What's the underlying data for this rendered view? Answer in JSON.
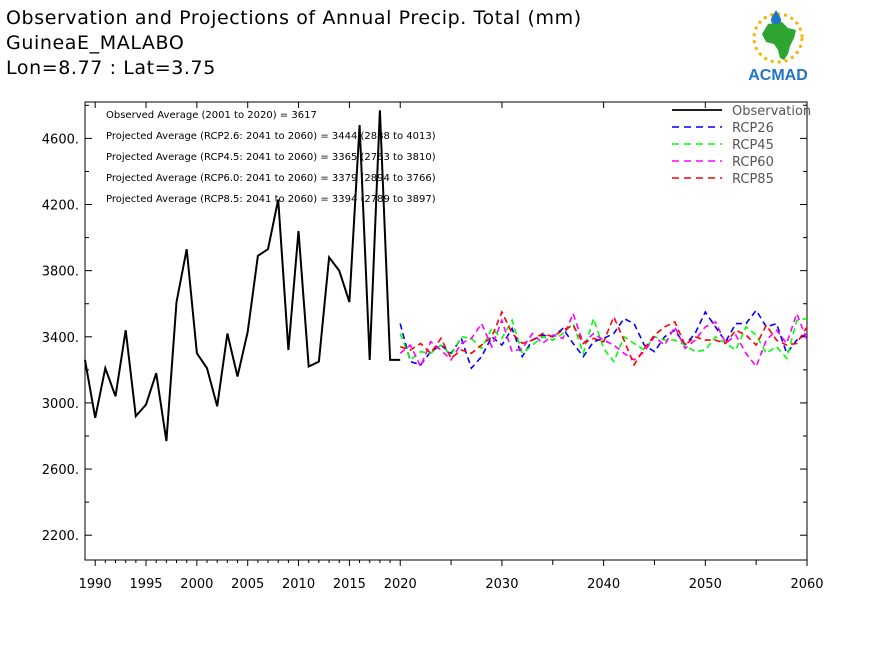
{
  "header": {
    "title_line1": "Observation and Projections of Annual Precip. Total (mm)",
    "title_line2": "GuineaE_MALABO",
    "title_line3": "Lon=8.77 : Lat=3.75",
    "logo_text": "ACMAD"
  },
  "chart_data": {
    "type": "line",
    "xlim": [
      1989,
      2060
    ],
    "ylim": [
      2050,
      4820
    ],
    "x_ticks": [
      {
        "value": 1990,
        "label": "1990"
      },
      {
        "value": 1995,
        "label": "1995"
      },
      {
        "value": 2000,
        "label": "2000"
      },
      {
        "value": 2005,
        "label": "2005"
      },
      {
        "value": 2010,
        "label": "2010"
      },
      {
        "value": 2015,
        "label": "2015"
      },
      {
        "value": 2020,
        "label": "2020"
      },
      {
        "value": 2030,
        "label": "2030"
      },
      {
        "value": 2040,
        "label": "2040"
      },
      {
        "value": 2050,
        "label": "2050"
      },
      {
        "value": 2060,
        "label": "2060"
      }
    ],
    "y_ticks": [
      {
        "value": 2200,
        "label": "2200."
      },
      {
        "value": 2600,
        "label": "2600."
      },
      {
        "value": 3000,
        "label": "3000."
      },
      {
        "value": 3400,
        "label": "3400."
      },
      {
        "value": 3800,
        "label": "3800."
      },
      {
        "value": 4200,
        "label": "4200."
      },
      {
        "value": 4600,
        "label": "4600."
      }
    ],
    "annotations": [
      "Observed Average (2001 to 2020) = 3617",
      "Projected Average (RCP2.6: 2041 to 2060) = 3444 (2888 to 4013)",
      "Projected Average (RCP4.5: 2041 to 2060) = 3365 (2763 to 3810)",
      "Projected Average (RCP6.0: 2041 to 2060) = 3379 (2894 to 3766)",
      "Projected Average (RCP8.5: 2041 to 2060) = 3394 (2789 to 3897)"
    ],
    "legend_position": "top-right",
    "series": [
      {
        "name": "Observation",
        "color": "#000000",
        "style": "solid",
        "x": [
          1989,
          1990,
          1991,
          1992,
          1993,
          1994,
          1995,
          1996,
          1997,
          1998,
          1999,
          2000,
          2001,
          2002,
          2003,
          2004,
          2005,
          2006,
          2007,
          2008,
          2009,
          2010,
          2011,
          2012,
          2013,
          2014,
          2015,
          2016,
          2017,
          2018,
          2019,
          2020
        ],
        "values": [
          3260,
          2910,
          3210,
          3040,
          3440,
          2920,
          2990,
          3180,
          2770,
          3610,
          3930,
          3300,
          3210,
          2980,
          3420,
          3160,
          3430,
          3890,
          3930,
          4230,
          3320,
          4040,
          3220,
          3250,
          3880,
          3800,
          3610,
          4680,
          3260,
          4770,
          3260,
          3260
        ]
      },
      {
        "name": "RCP26",
        "color": "#0000ff",
        "style": "dashed",
        "x": [
          2020,
          2021,
          2022,
          2023,
          2024,
          2025,
          2026,
          2027,
          2028,
          2029,
          2030,
          2031,
          2032,
          2033,
          2034,
          2035,
          2036,
          2037,
          2038,
          2039,
          2040,
          2041,
          2042,
          2043,
          2044,
          2045,
          2046,
          2047,
          2048,
          2049,
          2050,
          2051,
          2052,
          2053,
          2054,
          2055,
          2056,
          2057,
          2058,
          2059,
          2060
        ],
        "values": [
          3480,
          3250,
          3230,
          3310,
          3350,
          3300,
          3390,
          3210,
          3280,
          3400,
          3350,
          3450,
          3280,
          3380,
          3410,
          3400,
          3450,
          3360,
          3280,
          3370,
          3390,
          3420,
          3510,
          3480,
          3350,
          3310,
          3400,
          3440,
          3350,
          3420,
          3550,
          3460,
          3370,
          3480,
          3480,
          3560,
          3460,
          3480,
          3300,
          3380,
          3420
        ]
      },
      {
        "name": "RCP45",
        "color": "#00ff00",
        "style": "dashed",
        "x": [
          2020,
          2021,
          2022,
          2023,
          2024,
          2025,
          2026,
          2027,
          2028,
          2029,
          2030,
          2031,
          2032,
          2033,
          2034,
          2035,
          2036,
          2037,
          2038,
          2039,
          2040,
          2041,
          2042,
          2043,
          2044,
          2045,
          2046,
          2047,
          2048,
          2049,
          2050,
          2051,
          2052,
          2053,
          2054,
          2055,
          2056,
          2057,
          2058,
          2059,
          2060
        ],
        "values": [
          3420,
          3260,
          3310,
          3300,
          3350,
          3290,
          3400,
          3390,
          3330,
          3450,
          3390,
          3500,
          3300,
          3350,
          3400,
          3380,
          3420,
          3480,
          3300,
          3510,
          3330,
          3250,
          3400,
          3360,
          3320,
          3400,
          3380,
          3380,
          3350,
          3310,
          3320,
          3400,
          3360,
          3320,
          3460,
          3410,
          3300,
          3340,
          3270,
          3500,
          3510
        ]
      },
      {
        "name": "RCP60",
        "color": "#ff00ff",
        "style": "dashed",
        "x": [
          2020,
          2021,
          2022,
          2023,
          2024,
          2025,
          2026,
          2027,
          2028,
          2029,
          2030,
          2031,
          2032,
          2033,
          2034,
          2035,
          2036,
          2037,
          2038,
          2039,
          2040,
          2041,
          2042,
          2043,
          2044,
          2045,
          2046,
          2047,
          2048,
          2049,
          2050,
          2051,
          2052,
          2053,
          2054,
          2055,
          2056,
          2057,
          2058,
          2059,
          2060
        ],
        "values": [
          3300,
          3350,
          3220,
          3370,
          3320,
          3260,
          3360,
          3390,
          3480,
          3340,
          3500,
          3310,
          3330,
          3420,
          3360,
          3410,
          3390,
          3540,
          3360,
          3420,
          3380,
          3350,
          3300,
          3260,
          3310,
          3400,
          3350,
          3460,
          3330,
          3380,
          3460,
          3490,
          3360,
          3410,
          3300,
          3220,
          3380,
          3440,
          3360,
          3540,
          3380
        ]
      },
      {
        "name": "RCP85",
        "color": "#ff0000",
        "style": "dashed",
        "x": [
          2020,
          2021,
          2022,
          2023,
          2024,
          2025,
          2026,
          2027,
          2028,
          2029,
          2030,
          2031,
          2032,
          2033,
          2034,
          2035,
          2036,
          2037,
          2038,
          2039,
          2040,
          2041,
          2042,
          2043,
          2044,
          2045,
          2046,
          2047,
          2048,
          2049,
          2050,
          2051,
          2052,
          2053,
          2054,
          2055,
          2056,
          2057,
          2058,
          2059,
          2060
        ],
        "values": [
          3340,
          3320,
          3360,
          3300,
          3390,
          3270,
          3320,
          3300,
          3350,
          3400,
          3550,
          3420,
          3360,
          3380,
          3420,
          3400,
          3440,
          3470,
          3360,
          3390,
          3370,
          3520,
          3380,
          3230,
          3330,
          3410,
          3460,
          3490,
          3350,
          3400,
          3380,
          3380,
          3360,
          3440,
          3410,
          3350,
          3470,
          3380,
          3350,
          3360,
          3460
        ]
      }
    ]
  }
}
